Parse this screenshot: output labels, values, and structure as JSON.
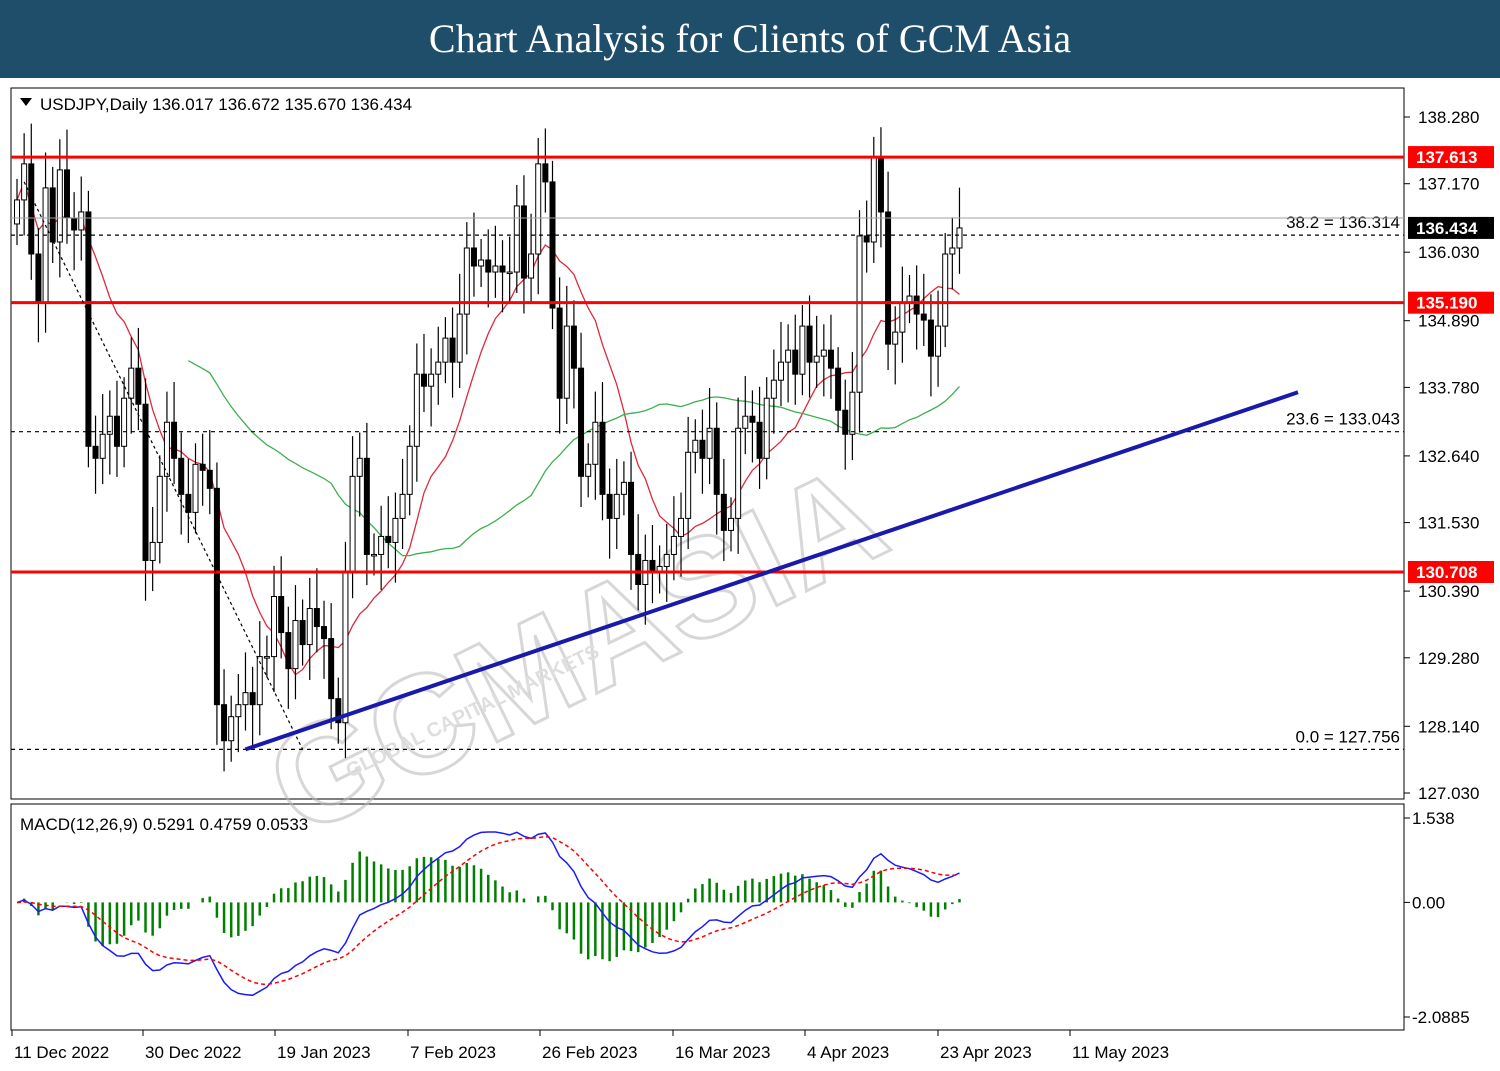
{
  "banner": {
    "title": "Chart Analysis for Clients of GCM Asia"
  },
  "chart_data": {
    "type": "candlestick",
    "symbol_header": "USDJPY,Daily  136.017 136.672 135.670 136.434",
    "price_axis": {
      "range": [
        126.7,
        139.2
      ],
      "ticks": [
        138.28,
        137.17,
        136.03,
        134.89,
        133.78,
        132.64,
        131.53,
        130.39,
        129.28,
        128.14,
        127.03
      ],
      "tick_labels": [
        "138.280",
        "137.170",
        "136.030",
        "134.890",
        "133.780",
        "132.640",
        "131.530",
        "130.390",
        "129.280",
        "128.140",
        "127.030"
      ]
    },
    "date_axis": {
      "labels": [
        "11 Dec 2022",
        "30 Dec 2022",
        "19 Jan 2023",
        "7 Feb 2023",
        "26 Feb 2023",
        "16 Mar 2023",
        "4 Apr 2023",
        "23 Apr 2023",
        "11 May 2023"
      ]
    },
    "horizontal_levels": [
      {
        "price": 137.613,
        "label": "137.613",
        "color": "#ff0000"
      },
      {
        "price": 135.19,
        "label": "135.190",
        "color": "#ff0000"
      },
      {
        "price": 130.708,
        "label": "130.708",
        "color": "#ff0000"
      }
    ],
    "current_price": {
      "price": 136.434,
      "label": "136.434"
    },
    "fibonacci": [
      {
        "price": 136.314,
        "label": "38.2 = 136.314"
      },
      {
        "price": 133.043,
        "label": "23.6 = 133.043"
      },
      {
        "price": 127.756,
        "label": "0.0 = 127.756"
      }
    ],
    "trendline": {
      "start_price": 127.756,
      "end_price": 133.7,
      "color": "#1a1aaa"
    },
    "closes": [
      136.9,
      137.5,
      136.0,
      135.2,
      137.1,
      136.2,
      137.4,
      136.6,
      136.4,
      136.7,
      132.8,
      132.6,
      133.0,
      133.3,
      132.8,
      133.6,
      134.1,
      133.5,
      130.9,
      131.2,
      132.3,
      133.2,
      132.6,
      132.0,
      131.7,
      132.5,
      132.4,
      132.1,
      128.5,
      127.9,
      128.3,
      128.5,
      128.7,
      128.5,
      129.3,
      129.3,
      130.3,
      129.7,
      129.1,
      129.9,
      129.5,
      130.1,
      129.8,
      129.6,
      128.6,
      128.2,
      130.7,
      132.3,
      132.6,
      131.0,
      131.0,
      131.3,
      131.2,
      131.6,
      132.0,
      132.8,
      134.0,
      133.8,
      134.0,
      134.2,
      134.6,
      134.2,
      135.0,
      136.1,
      135.8,
      135.9,
      135.7,
      135.8,
      135.7,
      135.7,
      136.8,
      135.6,
      136.0,
      137.5,
      137.2,
      135.1,
      133.6,
      134.8,
      134.1,
      132.3,
      132.5,
      133.2,
      132.0,
      131.6,
      132.0,
      132.2,
      131.0,
      130.5,
      130.9,
      130.7,
      130.8,
      131.0,
      131.3,
      131.6,
      132.7,
      132.9,
      132.6,
      133.1,
      132.0,
      131.4,
      131.6,
      133.1,
      133.3,
      133.2,
      132.6,
      133.6,
      133.9,
      134.2,
      134.4,
      134.0,
      134.8,
      134.2,
      134.3,
      134.4,
      134.1,
      133.4,
      133.0,
      133.7,
      136.3,
      136.2,
      137.6,
      136.7,
      134.5,
      134.7,
      135.2,
      135.3,
      135.0,
      134.9,
      134.3,
      134.8,
      136.0,
      136.1,
      136.434
    ],
    "moving_averages": [
      {
        "name": "MA fast",
        "color": "#dc2a3c"
      },
      {
        "name": "MA slow",
        "color": "#3cb050"
      }
    ],
    "macd": {
      "label": "MACD(12,26,9) 0.5291 0.4759 0.0533",
      "params": [
        12,
        26,
        9
      ],
      "values": [
        0.5291,
        0.4759,
        0.0533
      ],
      "axis_labels": [
        "1.538",
        "0.00",
        "-2.0885"
      ],
      "range": [
        -2.0885,
        1.538
      ],
      "macd_color": "#1a1aff",
      "signal_color": "#ff0000",
      "hist_color": "#008000"
    },
    "watermark": "GCMASIA",
    "watermark_sub": "GLOBAL CAPITAL MARKETS"
  }
}
